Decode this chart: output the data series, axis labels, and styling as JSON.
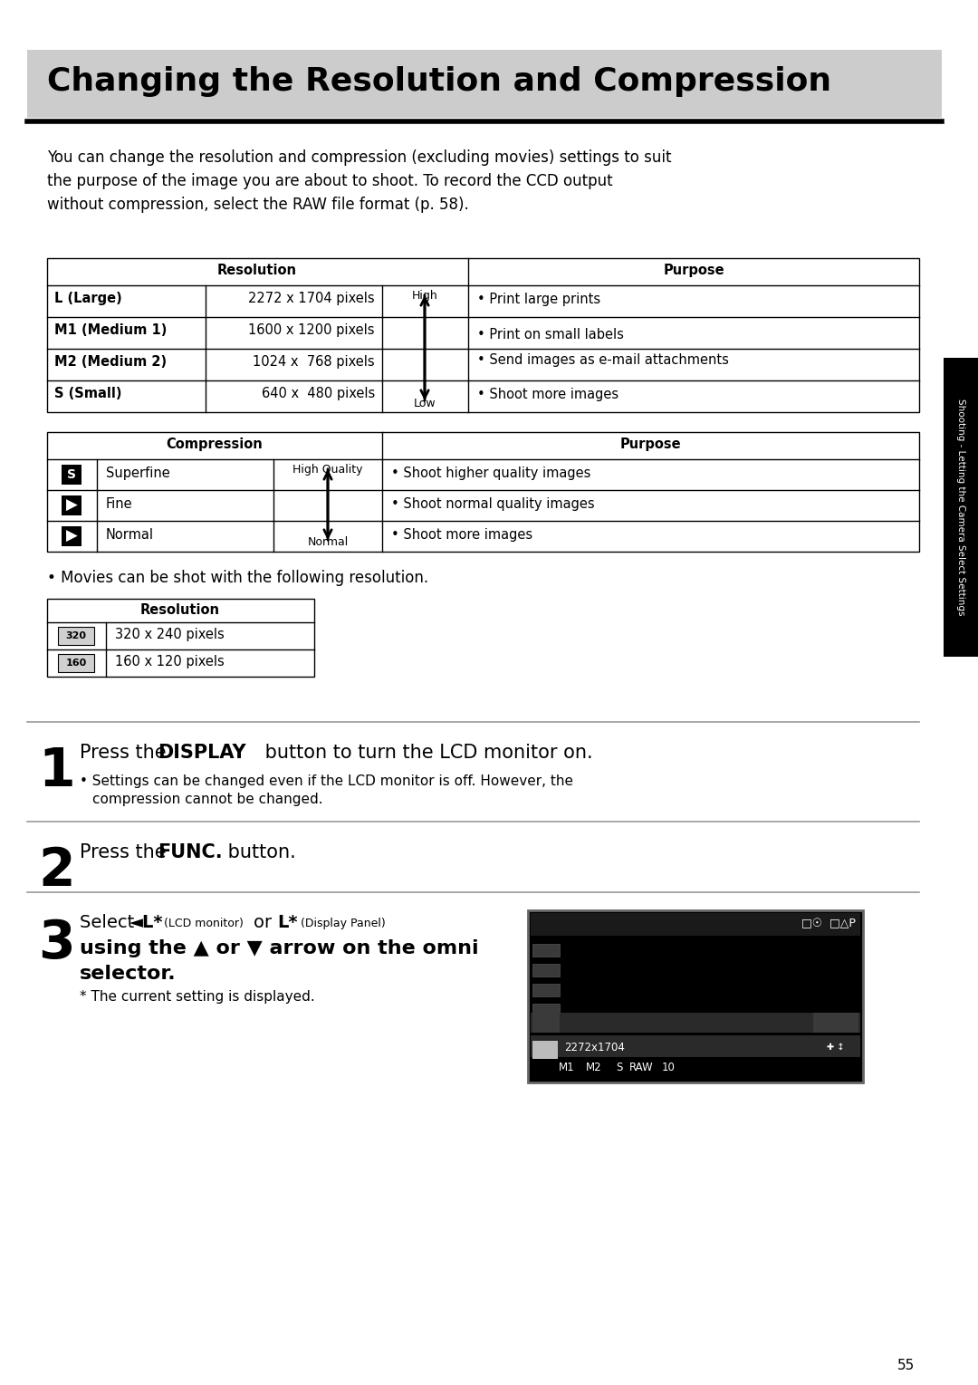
{
  "title": "Changing the Resolution and Compression",
  "title_bg": "#cccccc",
  "title_font_size": 24,
  "body_font_size": 12.5,
  "page_bg": "#ffffff",
  "intro_text_lines": [
    "You can change the resolution and compression (excluding movies) settings to suit",
    "the purpose of the image you are about to shoot. To record the CCD output",
    "without compression, select the RAW file format (p. 58)."
  ],
  "res_rows": [
    [
      "L (Large)",
      "2272 x 1704 pixels"
    ],
    [
      "M1 (Medium 1)",
      "1600 x 1200 pixels"
    ],
    [
      "M2 (Medium 2)",
      "1024 x  768 pixels"
    ],
    [
      "S (Small)",
      "640 x  480 pixels"
    ]
  ],
  "res_purpose": [
    "• Print large prints",
    "",
    "• Print on small labels",
    "• Send images as e-mail attachments",
    "• Shoot more images"
  ],
  "comp_rows": [
    [
      "Superfine",
      "High Quality",
      "• Shoot higher quality images"
    ],
    [
      "Fine",
      "",
      "• Shoot normal quality images"
    ],
    [
      "Normal",
      "Normal",
      "• Shoot more images"
    ]
  ],
  "movie_rows": [
    "320 x 240 pixels",
    "160 x 120 pixels"
  ],
  "sidebar_text": "Shooting - Letting the Camera Select Settings",
  "page_num": "55"
}
